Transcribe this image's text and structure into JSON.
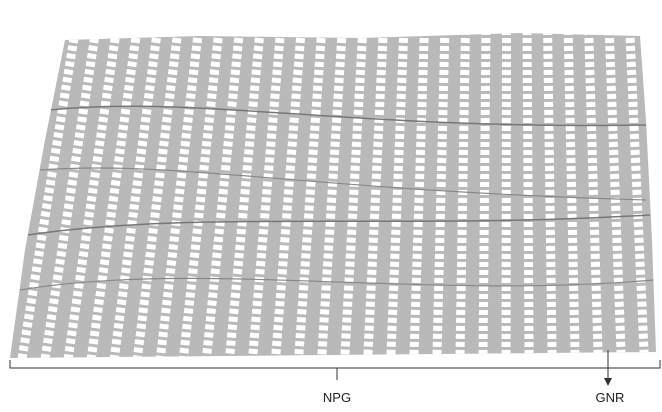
{
  "labels": {
    "npg": "NPG",
    "gnr": "GNR"
  }
}
